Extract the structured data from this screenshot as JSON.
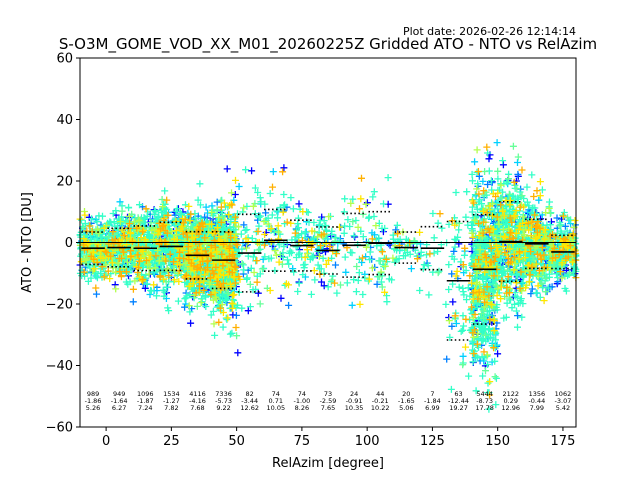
{
  "chart_data": {
    "type": "scatter",
    "title": "S-O3M_GOME_VOD_XX_M01_20260225Z Gridded ATO - NTO vs RelAzim",
    "plot_date": "Plot date: 2026-02-26 12:14:14",
    "xlabel": "RelAzim [degree]",
    "ylabel": "ATO - NTO [DU]",
    "xlim": [
      -10,
      180
    ],
    "ylim": [
      -60,
      60
    ],
    "xticks": [
      0,
      25,
      50,
      75,
      100,
      125,
      150,
      175
    ],
    "yticks": [
      -60,
      -40,
      -20,
      0,
      20,
      40,
      60
    ],
    "zero_line": 0,
    "marker": "+",
    "colors": [
      "#0000ff",
      "#0080ff",
      "#00d0ff",
      "#33ffc8",
      "#66ff99",
      "#b3ff4d",
      "#ffe600",
      "#ffb000"
    ],
    "bins": [
      {
        "x0": -10,
        "x1": 0,
        "mean": -1.86,
        "std": 5.26,
        "count": "989",
        "mean_label": "-1.86",
        "std_label": "5.26"
      },
      {
        "x0": 0,
        "x1": 10,
        "mean": -1.64,
        "std": 6.27,
        "count": "949",
        "mean_label": "-1.64",
        "std_label": "6.27"
      },
      {
        "x0": 10,
        "x1": 20,
        "mean": -1.87,
        "std": 7.24,
        "count": "1096",
        "mean_label": "-1.87",
        "std_label": "7.24"
      },
      {
        "x0": 20,
        "x1": 30,
        "mean": -1.27,
        "std": 7.82,
        "count": "1534",
        "mean_label": "-1.27",
        "std_label": "7.82"
      },
      {
        "x0": 30,
        "x1": 40,
        "mean": -4.16,
        "std": 7.68,
        "count": "4116",
        "mean_label": "-4.16",
        "std_label": "7.68"
      },
      {
        "x0": 40,
        "x1": 50,
        "mean": -5.73,
        "std": 9.22,
        "count": "7336",
        "mean_label": "-5.73",
        "std_label": "9.22"
      },
      {
        "x0": 50,
        "x1": 60,
        "mean": -3.44,
        "std": 12.62,
        "count": "82",
        "mean_label": "-3.44",
        "std_label": "12.62"
      },
      {
        "x0": 60,
        "x1": 70,
        "mean": 0.71,
        "std": 10.05,
        "count": "74",
        "mean_label": "0.71",
        "std_label": "10.05"
      },
      {
        "x0": 70,
        "x1": 80,
        "mean": -1.0,
        "std": 8.26,
        "count": "74",
        "mean_label": "-1.00",
        "std_label": "8.26"
      },
      {
        "x0": 80,
        "x1": 90,
        "mean": -2.59,
        "std": 7.65,
        "count": "73",
        "mean_label": "-2.59",
        "std_label": "7.65"
      },
      {
        "x0": 90,
        "x1": 100,
        "mean": -0.91,
        "std": 10.35,
        "count": "24",
        "mean_label": "-0.91",
        "std_label": "10.35"
      },
      {
        "x0": 100,
        "x1": 110,
        "mean": -0.21,
        "std": 10.22,
        "count": "44",
        "mean_label": "-0.21",
        "std_label": "10.22"
      },
      {
        "x0": 110,
        "x1": 120,
        "mean": -1.65,
        "std": 5.06,
        "count": "20",
        "mean_label": "-1.65",
        "std_label": "5.06"
      },
      {
        "x0": 120,
        "x1": 130,
        "mean": -1.84,
        "std": 6.99,
        "count": "7",
        "mean_label": "-1.84",
        "std_label": "6.99"
      },
      {
        "x0": 130,
        "x1": 140,
        "mean": -12.44,
        "std": 19.27,
        "count": "63",
        "mean_label": "-12.44",
        "std_label": "19.27"
      },
      {
        "x0": 140,
        "x1": 150,
        "mean": -8.73,
        "std": 17.78,
        "count": "5444",
        "mean_label": "-8.73",
        "std_label": "17.78"
      },
      {
        "x0": 150,
        "x1": 160,
        "mean": 0.29,
        "std": 12.96,
        "count": "2122",
        "mean_label": "0.29",
        "std_label": "12.96"
      },
      {
        "x0": 160,
        "x1": 170,
        "mean": -0.44,
        "std": 7.99,
        "count": "1356",
        "mean_label": "-0.44",
        "std_label": "7.99"
      },
      {
        "x0": 170,
        "x1": 180,
        "mean": -3.07,
        "std": 5.42,
        "count": "1062",
        "mean_label": "-3.07",
        "std_label": "5.42"
      }
    ]
  }
}
